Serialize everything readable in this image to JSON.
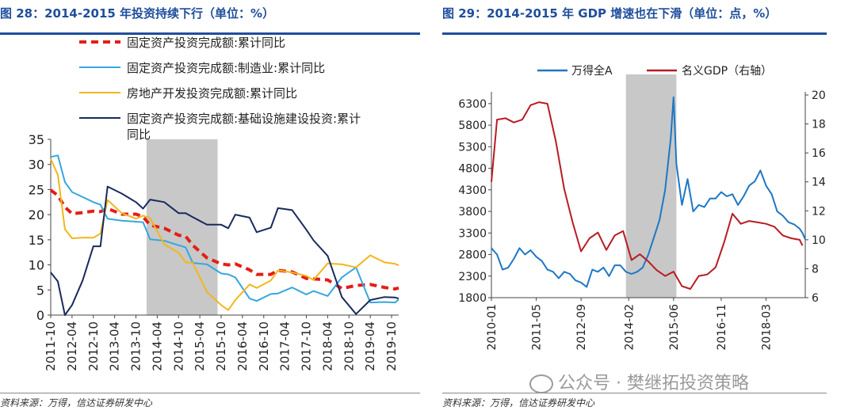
{
  "left": {
    "title": "图 28：2014-2015 年投资持续下行（单位：%）",
    "source": "资料来源：万得，信达证券研发中心",
    "chart_data": {
      "type": "line",
      "x_ticks": [
        "2011-10",
        "2012-04",
        "2012-10",
        "2013-04",
        "2013-10",
        "2014-04",
        "2014-10",
        "2015-04",
        "2015-10",
        "2016-04",
        "2016-10",
        "2017-04",
        "2017-10",
        "2018-04",
        "2018-10",
        "2019-04",
        "2019-10"
      ],
      "ylim": [
        0,
        35
      ],
      "y_ticks": [
        0,
        5,
        10,
        15,
        20,
        25,
        30,
        35
      ],
      "shaded_range": [
        "2014-01",
        "2015-09"
      ],
      "series": [
        {
          "name": "固定资产投资完成额:累计同比",
          "color": "#e41e16",
          "dashed": true,
          "points": [
            [
              "2011-10",
              24.9
            ],
            [
              "2011-12",
              23.8
            ],
            [
              "2012-02",
              21.5
            ],
            [
              "2012-04",
              20.2
            ],
            [
              "2012-07",
              20.4
            ],
            [
              "2012-10",
              20.7
            ],
            [
              "2012-12",
              20.6
            ],
            [
              "2013-02",
              21.2
            ],
            [
              "2013-06",
              20.1
            ],
            [
              "2013-10",
              20.1
            ],
            [
              "2013-12",
              19.6
            ],
            [
              "2014-02",
              17.9
            ],
            [
              "2014-06",
              17.3
            ],
            [
              "2014-10",
              15.9
            ],
            [
              "2014-12",
              15.7
            ],
            [
              "2015-02",
              13.9
            ],
            [
              "2015-06",
              11.4
            ],
            [
              "2015-10",
              10.2
            ],
            [
              "2015-12",
              10.0
            ],
            [
              "2016-02",
              10.2
            ],
            [
              "2016-06",
              9.0
            ],
            [
              "2016-08",
              8.1
            ],
            [
              "2016-12",
              8.1
            ],
            [
              "2017-02",
              8.9
            ],
            [
              "2017-06",
              8.6
            ],
            [
              "2017-10",
              7.3
            ],
            [
              "2017-12",
              7.2
            ],
            [
              "2018-04",
              7.0
            ],
            [
              "2018-08",
              5.3
            ],
            [
              "2018-12",
              5.9
            ],
            [
              "2019-04",
              6.1
            ],
            [
              "2019-08",
              5.5
            ],
            [
              "2019-11",
              5.2
            ],
            [
              "2019-12",
              5.4
            ]
          ]
        },
        {
          "name": "固定资产投资完成额:制造业:累计同比",
          "color": "#35a7e0",
          "dashed": false,
          "points": [
            [
              "2011-10",
              31.5
            ],
            [
              "2011-12",
              31.8
            ],
            [
              "2012-02",
              26.5
            ],
            [
              "2012-04",
              24.5
            ],
            [
              "2012-07",
              23.5
            ],
            [
              "2012-10",
              22.5
            ],
            [
              "2012-12",
              22.0
            ],
            [
              "2013-02",
              19.2
            ],
            [
              "2013-06",
              18.8
            ],
            [
              "2013-10",
              18.6
            ],
            [
              "2013-12",
              18.5
            ],
            [
              "2014-02",
              15.1
            ],
            [
              "2014-06",
              14.8
            ],
            [
              "2014-10",
              13.9
            ],
            [
              "2014-12",
              13.5
            ],
            [
              "2015-02",
              10.4
            ],
            [
              "2015-06",
              10.1
            ],
            [
              "2015-10",
              8.3
            ],
            [
              "2015-12",
              8.1
            ],
            [
              "2016-02",
              7.5
            ],
            [
              "2016-06",
              3.3
            ],
            [
              "2016-08",
              2.8
            ],
            [
              "2016-12",
              4.2
            ],
            [
              "2017-02",
              4.3
            ],
            [
              "2017-06",
              5.5
            ],
            [
              "2017-10",
              4.1
            ],
            [
              "2017-12",
              4.8
            ],
            [
              "2018-04",
              3.8
            ],
            [
              "2018-08",
              7.5
            ],
            [
              "2018-12",
              9.5
            ],
            [
              "2019-04",
              2.5
            ],
            [
              "2019-08",
              2.6
            ],
            [
              "2019-11",
              2.5
            ],
            [
              "2019-12",
              3.1
            ]
          ]
        },
        {
          "name": "房地产开发投资完成额:累计同比",
          "color": "#f2b61c",
          "dashed": false,
          "points": [
            [
              "2011-10",
              31.1
            ],
            [
              "2011-12",
              27.9
            ],
            [
              "2012-02",
              17.1
            ],
            [
              "2012-04",
              15.3
            ],
            [
              "2012-07",
              15.4
            ],
            [
              "2012-10",
              15.4
            ],
            [
              "2012-12",
              16.2
            ],
            [
              "2013-02",
              22.9
            ],
            [
              "2013-06",
              20.3
            ],
            [
              "2013-10",
              19.2
            ],
            [
              "2013-12",
              19.8
            ],
            [
              "2014-02",
              19.3
            ],
            [
              "2014-06",
              14.1
            ],
            [
              "2014-10",
              12.4
            ],
            [
              "2014-12",
              10.5
            ],
            [
              "2015-02",
              10.4
            ],
            [
              "2015-06",
              4.6
            ],
            [
              "2015-10",
              2.0
            ],
            [
              "2015-12",
              1.0
            ],
            [
              "2016-02",
              3.0
            ],
            [
              "2016-06",
              6.1
            ],
            [
              "2016-08",
              5.4
            ],
            [
              "2016-12",
              6.9
            ],
            [
              "2017-02",
              8.9
            ],
            [
              "2017-06",
              8.5
            ],
            [
              "2017-10",
              7.8
            ],
            [
              "2017-12",
              7.0
            ],
            [
              "2018-04",
              10.3
            ],
            [
              "2018-08",
              10.1
            ],
            [
              "2018-12",
              9.5
            ],
            [
              "2019-04",
              11.9
            ],
            [
              "2019-08",
              10.5
            ],
            [
              "2019-11",
              10.2
            ],
            [
              "2019-12",
              9.9
            ]
          ]
        },
        {
          "name": "固定资产投资完成额:基础设施建设投资:累计同比",
          "color": "#1a2a5e",
          "dashed": false,
          "points": [
            [
              "2011-10",
              8.5
            ],
            [
              "2011-12",
              6.7
            ],
            [
              "2012-02",
              -1.5
            ],
            [
              "2012-04",
              2.0
            ],
            [
              "2012-07",
              6.9
            ],
            [
              "2012-10",
              13.7
            ],
            [
              "2012-12",
              13.7
            ],
            [
              "2013-02",
              25.6
            ],
            [
              "2013-06",
              24.2
            ],
            [
              "2013-10",
              22.5
            ],
            [
              "2013-12",
              21.2
            ],
            [
              "2014-02",
              23.0
            ],
            [
              "2014-06",
              22.5
            ],
            [
              "2014-10",
              20.3
            ],
            [
              "2014-12",
              20.3
            ],
            [
              "2015-02",
              19.5
            ],
            [
              "2015-06",
              18.0
            ],
            [
              "2015-10",
              18.0
            ],
            [
              "2015-12",
              17.3
            ],
            [
              "2016-02",
              20.0
            ],
            [
              "2016-06",
              19.4
            ],
            [
              "2016-08",
              16.5
            ],
            [
              "2016-12",
              17.4
            ],
            [
              "2017-02",
              21.3
            ],
            [
              "2017-06",
              20.9
            ],
            [
              "2017-10",
              17.0
            ],
            [
              "2017-12",
              14.9
            ],
            [
              "2018-04",
              11.8
            ],
            [
              "2018-08",
              3.6
            ],
            [
              "2018-12",
              0.2
            ],
            [
              "2019-04",
              3.0
            ],
            [
              "2019-08",
              3.6
            ],
            [
              "2019-11",
              3.5
            ],
            [
              "2019-12",
              3.3
            ]
          ]
        }
      ]
    }
  },
  "right": {
    "title": "图 29：2014-2015 年 GDP 增速也在下滑（单位：点，%）",
    "source": "资料来源：万得，信达证券研发中心",
    "chart_data": {
      "type": "line",
      "x_ticks": [
        "2010-01",
        "2011-05",
        "2012-09",
        "2014-02",
        "2015-06",
        "2016-11",
        "2018-03"
      ],
      "y_left_ticks": [
        1800,
        2300,
        2800,
        3300,
        3800,
        4300,
        4800,
        5300,
        5800,
        6300
      ],
      "ylim_left": [
        1800,
        6500
      ],
      "y_right_ticks": [
        6,
        8,
        10,
        12,
        14,
        16,
        18,
        20
      ],
      "ylim_right": [
        6,
        20
      ],
      "shaded_range": [
        "2014-01",
        "2015-07"
      ],
      "series": [
        {
          "name": "万得全A",
          "axis": "left",
          "color": "#1f77c4",
          "points": [
            [
              "2010-01",
              2950
            ],
            [
              "2010-03",
              2800
            ],
            [
              "2010-05",
              2450
            ],
            [
              "2010-07",
              2500
            ],
            [
              "2010-09",
              2700
            ],
            [
              "2010-11",
              2950
            ],
            [
              "2011-01",
              2800
            ],
            [
              "2011-03",
              2900
            ],
            [
              "2011-05",
              2750
            ],
            [
              "2011-07",
              2650
            ],
            [
              "2011-09",
              2450
            ],
            [
              "2011-11",
              2400
            ],
            [
              "2012-01",
              2250
            ],
            [
              "2012-03",
              2400
            ],
            [
              "2012-05",
              2350
            ],
            [
              "2012-07",
              2200
            ],
            [
              "2012-09",
              2150
            ],
            [
              "2012-11",
              2050
            ],
            [
              "2013-01",
              2450
            ],
            [
              "2013-03",
              2400
            ],
            [
              "2013-05",
              2500
            ],
            [
              "2013-07",
              2300
            ],
            [
              "2013-09",
              2550
            ],
            [
              "2013-11",
              2550
            ],
            [
              "2014-01",
              2400
            ],
            [
              "2014-03",
              2350
            ],
            [
              "2014-05",
              2400
            ],
            [
              "2014-07",
              2500
            ],
            [
              "2014-09",
              2800
            ],
            [
              "2014-11",
              3200
            ],
            [
              "2015-01",
              3600
            ],
            [
              "2015-03",
              4300
            ],
            [
              "2015-05",
              5500
            ],
            [
              "2015-06",
              6450
            ],
            [
              "2015-07",
              4900
            ],
            [
              "2015-09",
              3950
            ],
            [
              "2015-11",
              4550
            ],
            [
              "2016-01",
              3800
            ],
            [
              "2016-03",
              3950
            ],
            [
              "2016-05",
              3900
            ],
            [
              "2016-07",
              4100
            ],
            [
              "2016-09",
              4100
            ],
            [
              "2016-11",
              4250
            ],
            [
              "2017-01",
              4150
            ],
            [
              "2017-03",
              4200
            ],
            [
              "2017-05",
              3950
            ],
            [
              "2017-07",
              4150
            ],
            [
              "2017-09",
              4400
            ],
            [
              "2017-11",
              4500
            ],
            [
              "2018-01",
              4750
            ],
            [
              "2018-03",
              4400
            ],
            [
              "2018-05",
              4200
            ],
            [
              "2018-07",
              3800
            ],
            [
              "2018-09",
              3700
            ],
            [
              "2018-11",
              3550
            ],
            [
              "2019-01",
              3500
            ],
            [
              "2019-03",
              3400
            ],
            [
              "2019-04",
              3300
            ],
            [
              "2019-05",
              3150
            ]
          ]
        },
        {
          "name": "名义GDP（右轴）",
          "axis": "right",
          "color": "#b81c22",
          "points": [
            [
              "2010-01",
              14
            ],
            [
              "2010-03",
              18.3
            ],
            [
              "2010-06",
              18.4
            ],
            [
              "2010-09",
              18.1
            ],
            [
              "2010-12",
              18.3
            ],
            [
              "2011-03",
              19.3
            ],
            [
              "2011-06",
              19.5
            ],
            [
              "2011-09",
              19.4
            ],
            [
              "2011-12",
              16.8
            ],
            [
              "2012-03",
              13.5
            ],
            [
              "2012-06",
              11.2
            ],
            [
              "2012-09",
              9.2
            ],
            [
              "2012-12",
              10.1
            ],
            [
              "2013-03",
              10.5
            ],
            [
              "2013-06",
              9.3
            ],
            [
              "2013-09",
              10.3
            ],
            [
              "2013-12",
              10.6
            ],
            [
              "2014-03",
              8.6
            ],
            [
              "2014-06",
              9.0
            ],
            [
              "2014-09",
              8.5
            ],
            [
              "2014-12",
              7.9
            ],
            [
              "2015-03",
              7.5
            ],
            [
              "2015-06",
              7.8
            ],
            [
              "2015-09",
              6.8
            ],
            [
              "2015-12",
              6.6
            ],
            [
              "2016-03",
              7.5
            ],
            [
              "2016-06",
              7.6
            ],
            [
              "2016-09",
              8.1
            ],
            [
              "2016-12",
              9.8
            ],
            [
              "2017-03",
              11.8
            ],
            [
              "2017-06",
              11.1
            ],
            [
              "2017-09",
              11.3
            ],
            [
              "2017-12",
              11.2
            ],
            [
              "2018-03",
              11.1
            ],
            [
              "2018-06",
              10.9
            ],
            [
              "2018-09",
              10.3
            ],
            [
              "2018-12",
              10.1
            ],
            [
              "2019-03",
              10.0
            ],
            [
              "2019-04",
              9.6
            ]
          ]
        }
      ]
    }
  },
  "watermark": "公众号 · 樊继拓投资策略"
}
